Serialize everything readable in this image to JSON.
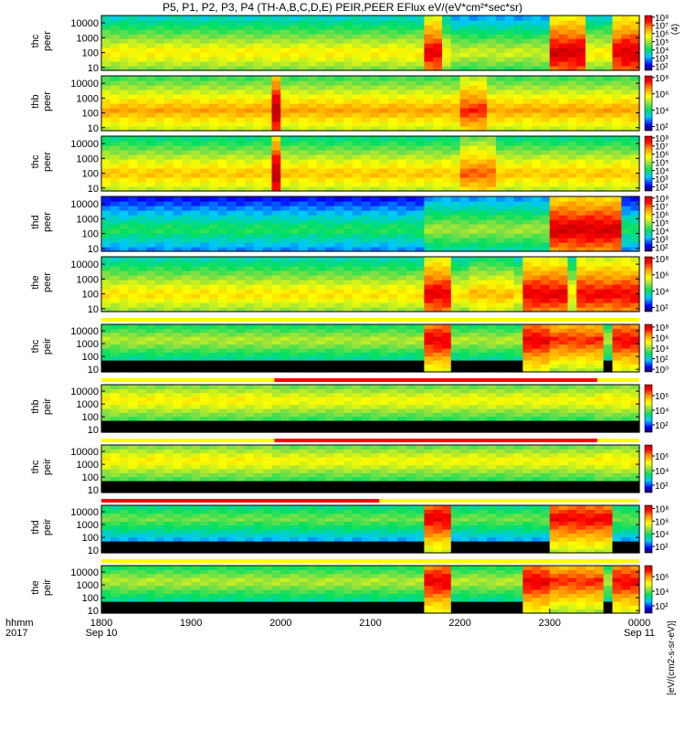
{
  "chart_data": {
    "type": "heatmap",
    "title": "P5, P1, P2, P3, P4 (TH-A,B,C,D,E) PEIR,PEER EFlux eV/(eV*cm²*sec*sr)",
    "x": {
      "tick_labels": [
        "1800",
        "1900",
        "2000",
        "2100",
        "2200",
        "2300",
        "0000"
      ],
      "tick_hours": [
        18,
        19,
        20,
        21,
        22,
        23,
        24
      ],
      "sub_labels": [
        "Sep 10",
        "",
        "",
        "",
        "",
        "",
        "Sep 11"
      ],
      "range_hours": [
        18,
        24
      ],
      "label_line1": "hhmm",
      "label_line2": "2017"
    },
    "y_tick_labels": [
      "10",
      "100",
      "1000",
      "10000"
    ],
    "colorbar_label": "[eV/(cm2-s-sr-eV)]",
    "colorbar_label_partial": "(4)",
    "panels": [
      {
        "label": "thc\npeer",
        "log_range": [
          0.8,
          4.5
        ],
        "colorbar_ticks": [
          {
            "t": "10⁸",
            "v": 8
          },
          {
            "t": "10⁷",
            "v": 7
          },
          {
            "t": "10⁶",
            "v": 6
          },
          {
            "t": "10⁵",
            "v": 5
          },
          {
            "t": "10⁴",
            "v": 4
          },
          {
            "t": "10³",
            "v": 3
          },
          {
            "t": "10²",
            "v": 2
          }
        ],
        "cb_range": [
          1.5,
          8.2
        ],
        "band_log": 2.0,
        "base_level": 0.62,
        "bar": false,
        "events": [
          {
            "start": 21.65,
            "end": 21.82,
            "level": 0.92
          },
          {
            "start": 21.95,
            "end": 22.95,
            "level": 0.55
          },
          {
            "start": 23.0,
            "end": 23.35,
            "level": 0.95
          },
          {
            "start": 23.7,
            "end": 23.8,
            "level": 0.92
          },
          {
            "start": 23.85,
            "end": 24.0,
            "level": 0.95
          }
        ]
      },
      {
        "label": "thb\npeer",
        "log_range": [
          0.8,
          4.5
        ],
        "colorbar_ticks": [
          {
            "t": "10⁸",
            "v": 8
          },
          {
            "t": "10⁶",
            "v": 6
          },
          {
            "t": "10⁴",
            "v": 4
          },
          {
            "t": "10²",
            "v": 2
          }
        ],
        "cb_range": [
          1.5,
          8.2
        ],
        "band_log": 2.2,
        "base_level": 0.72,
        "bar": false,
        "events": [
          {
            "start": 19.92,
            "end": 19.97,
            "level": 1.0
          },
          {
            "start": 22.0,
            "end": 22.3,
            "level": 0.85
          }
        ]
      },
      {
        "label": "thc\npeer",
        "log_range": [
          0.8,
          4.5
        ],
        "colorbar_ticks": [
          {
            "t": "10⁸",
            "v": 8
          },
          {
            "t": "10⁷",
            "v": 7
          },
          {
            "t": "10⁶",
            "v": 6
          },
          {
            "t": "10⁵",
            "v": 5
          },
          {
            "t": "10⁴",
            "v": 4
          },
          {
            "t": "10³",
            "v": 3
          },
          {
            "t": "10²",
            "v": 2
          }
        ],
        "cb_range": [
          1.5,
          8.2
        ],
        "band_log": 2.0,
        "base_level": 0.68,
        "bar": false,
        "events": [
          {
            "start": 19.92,
            "end": 19.97,
            "level": 1.0
          },
          {
            "start": 22.0,
            "end": 22.4,
            "level": 0.8
          }
        ]
      },
      {
        "label": "thd\npeer",
        "log_range": [
          0.8,
          4.5
        ],
        "colorbar_ticks": [
          {
            "t": "10⁸",
            "v": 8
          },
          {
            "t": "10⁷",
            "v": 7
          },
          {
            "t": "10⁶",
            "v": 6
          },
          {
            "t": "10⁵",
            "v": 5
          },
          {
            "t": "10⁴",
            "v": 4
          },
          {
            "t": "10³",
            "v": 3
          },
          {
            "t": "10²",
            "v": 2
          }
        ],
        "cb_range": [
          1.5,
          8.2
        ],
        "band_log": 2.3,
        "base_level": 0.38,
        "bar": false,
        "events": [
          {
            "start": 21.6,
            "end": 22.95,
            "level": 0.5
          },
          {
            "start": 23.0,
            "end": 23.8,
            "level": 0.95
          }
        ]
      },
      {
        "label": "the\npeer",
        "log_range": [
          0.8,
          4.5
        ],
        "colorbar_ticks": [
          {
            "t": "10⁸",
            "v": 8
          },
          {
            "t": "10⁶",
            "v": 6
          },
          {
            "t": "10⁴",
            "v": 4
          },
          {
            "t": "10²",
            "v": 2
          }
        ],
        "cb_range": [
          1.5,
          8.2
        ],
        "band_log": 2.0,
        "base_level": 0.64,
        "bar": false,
        "events": [
          {
            "start": 21.65,
            "end": 21.9,
            "level": 0.92
          },
          {
            "start": 22.1,
            "end": 22.6,
            "level": 0.7
          },
          {
            "start": 22.75,
            "end": 23.2,
            "level": 0.92
          },
          {
            "start": 23.3,
            "end": 24.0,
            "level": 0.9
          }
        ]
      },
      {
        "label": "thc\npeir",
        "log_range": [
          0.8,
          4.5
        ],
        "colorbar_ticks": [
          {
            "t": "10⁸",
            "v": 8
          },
          {
            "t": "10⁶",
            "v": 6
          },
          {
            "t": "10⁴",
            "v": 4
          },
          {
            "t": "10²",
            "v": 2
          },
          {
            "t": "10⁰",
            "v": 0
          }
        ],
        "cb_range": [
          -0.5,
          8.5
        ],
        "band_log": 3.3,
        "base_level": 0.52,
        "bar": true,
        "bar_red": [],
        "events": [
          {
            "start": 21.65,
            "end": 21.9,
            "level": 0.92
          },
          {
            "start": 22.75,
            "end": 23.05,
            "level": 0.92
          },
          {
            "start": 23.05,
            "end": 23.6,
            "level": 0.85
          },
          {
            "start": 23.7,
            "end": 24.0,
            "level": 0.9
          }
        ]
      },
      {
        "label": "thb\npeir",
        "log_range": [
          0.8,
          4.5
        ],
        "colorbar_ticks": [
          {
            "t": "10⁶",
            "v": 6
          },
          {
            "t": "10⁴",
            "v": 4
          },
          {
            "t": "10²",
            "v": 2
          }
        ],
        "cb_range": [
          1.0,
          7.5
        ],
        "band_log": 3.3,
        "base_level": 0.62,
        "bar": true,
        "bar_red": [
          {
            "start": 19.93,
            "end": 23.53
          }
        ],
        "events": [
          {
            "start": 19.93,
            "end": 23.53,
            "level": 0.6
          }
        ]
      },
      {
        "label": "thc\npeir",
        "log_range": [
          0.8,
          4.5
        ],
        "colorbar_ticks": [
          {
            "t": "10⁶",
            "v": 6
          },
          {
            "t": "10⁴",
            "v": 4
          },
          {
            "t": "10²",
            "v": 2
          }
        ],
        "cb_range": [
          1.0,
          7.5
        ],
        "band_log": 3.3,
        "base_level": 0.62,
        "bar": true,
        "bar_red": [
          {
            "start": 19.93,
            "end": 23.53
          }
        ],
        "events": [
          {
            "start": 19.93,
            "end": 23.53,
            "level": 0.6
          }
        ]
      },
      {
        "label": "thd\npeir",
        "log_range": [
          0.8,
          4.5
        ],
        "colorbar_ticks": [
          {
            "t": "10⁸",
            "v": 8
          },
          {
            "t": "10⁶",
            "v": 6
          },
          {
            "t": "10⁴",
            "v": 4
          },
          {
            "t": "10²",
            "v": 2
          }
        ],
        "cb_range": [
          1.0,
          8.5
        ],
        "band_log": 3.5,
        "base_level": 0.45,
        "bar": true,
        "bar_red": [
          {
            "start": 18.0,
            "end": 21.1
          }
        ],
        "events": [
          {
            "start": 21.6,
            "end": 21.9,
            "level": 0.92
          },
          {
            "start": 23.0,
            "end": 23.7,
            "level": 0.9
          }
        ]
      },
      {
        "label": "the\npeir",
        "log_range": [
          0.8,
          4.5
        ],
        "colorbar_ticks": [
          {
            "t": "10⁶",
            "v": 6
          },
          {
            "t": "10⁴",
            "v": 4
          },
          {
            "t": "10²",
            "v": 2
          }
        ],
        "cb_range": [
          1.0,
          7.5
        ],
        "band_log": 3.3,
        "base_level": 0.52,
        "bar": true,
        "bar_red": [],
        "events": [
          {
            "start": 21.65,
            "end": 21.9,
            "level": 0.92
          },
          {
            "start": 22.75,
            "end": 23.05,
            "level": 0.92
          },
          {
            "start": 23.05,
            "end": 23.6,
            "level": 0.85
          },
          {
            "start": 23.7,
            "end": 24.0,
            "level": 0.9
          }
        ]
      }
    ]
  }
}
